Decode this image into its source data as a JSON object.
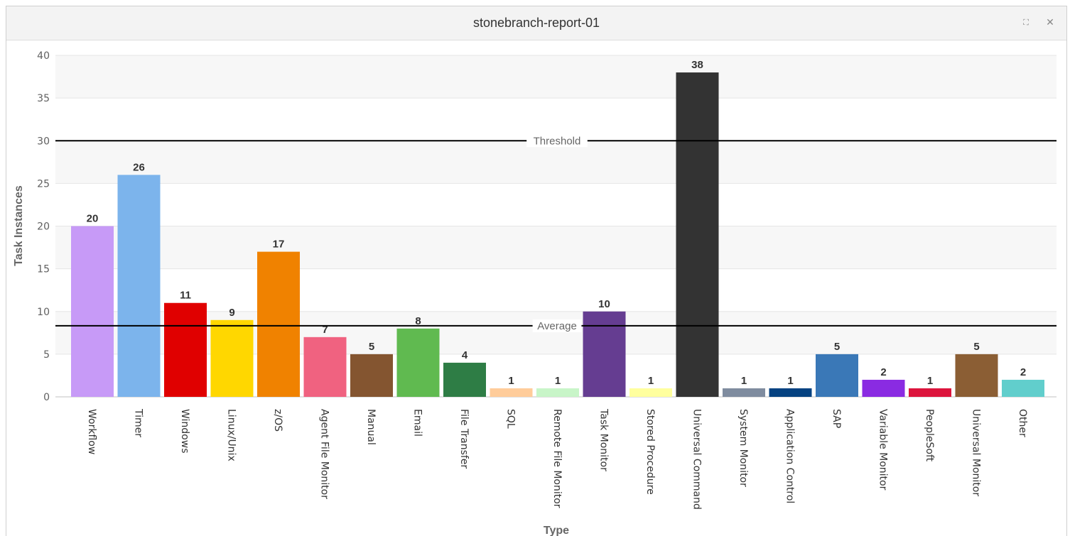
{
  "window": {
    "title": "stonebranch-report-01",
    "expand_icon": "expand-icon",
    "close_icon": "close-icon"
  },
  "chart_data": {
    "type": "bar",
    "xlabel": "Type",
    "ylabel": "Task Instances",
    "ylim": [
      0,
      40
    ],
    "yticks": [
      0,
      5,
      10,
      15,
      20,
      25,
      30,
      35,
      40
    ],
    "grid": true,
    "legend": "none",
    "categories": [
      "Workflow",
      "Timer",
      "Windows",
      "Linux/Unix",
      "z/OS",
      "Agent File Monitor",
      "Manual",
      "Email",
      "File Transfer",
      "SQL",
      "Remote File Monitor",
      "Task Monitor",
      "Stored Procedure",
      "Universal Command",
      "System Monitor",
      "Application Control",
      "SAP",
      "Variable Monitor",
      "PeopleSoft",
      "Universal Monitor",
      "Other"
    ],
    "values": [
      20,
      26,
      11,
      9,
      17,
      7,
      5,
      8,
      4,
      1,
      1,
      10,
      1,
      38,
      1,
      1,
      5,
      2,
      1,
      5,
      2
    ],
    "colors": [
      "#c79af7",
      "#7cb4ec",
      "#e00000",
      "#ffd700",
      "#f08200",
      "#f06280",
      "#845530",
      "#60ba50",
      "#2e7d45",
      "#ffcc9a",
      "#c8f5c8",
      "#653d91",
      "#ffff9e",
      "#333333",
      "#7f8c9f",
      "#054281",
      "#3a78b7",
      "#8a2be2",
      "#dc143c",
      "#8b5e34",
      "#61cecc"
    ],
    "reference_lines": [
      {
        "label": "Threshold",
        "value": 30
      },
      {
        "label": "Average",
        "value": 8.33
      }
    ]
  }
}
